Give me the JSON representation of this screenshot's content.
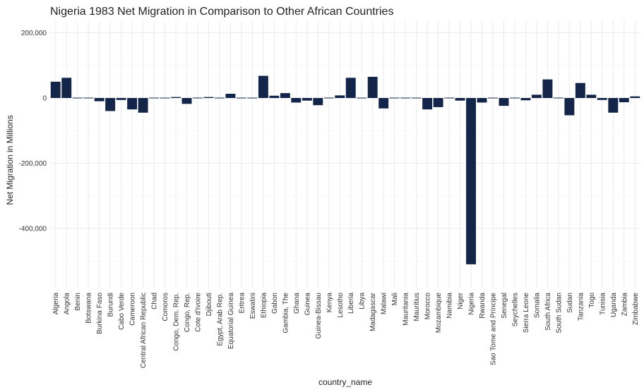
{
  "chart_data": {
    "type": "bar",
    "title": "Nigeria 1983 Net Migration in Comparison to Other African Countries",
    "xlabel": "country_name",
    "ylabel": "Net Migration in Millions",
    "ylim": [
      -590000,
      220000
    ],
    "yticks": [
      200000,
      0,
      -200000,
      -400000
    ],
    "ytick_labels": [
      "200,000",
      "0",
      "-200,000",
      "-400,000"
    ],
    "grid": true,
    "bar_color": "#14254a",
    "categories": [
      "Algeria",
      "Angola",
      "Benin",
      "Botswana",
      "Burkina Faso",
      "Burundi",
      "Cabo Verde",
      "Cameroon",
      "Central African Republic",
      "Chad",
      "Comoros",
      "Congo, Dem. Rep.",
      "Congo, Rep.",
      "Cote d'Ivoire",
      "Djibouti",
      "Egypt, Arab Rep.",
      "Equatorial Guinea",
      "Eritrea",
      "Eswatini",
      "Ethiopia",
      "Gabon",
      "Gambia, The",
      "Ghana",
      "Guinea",
      "Guinea-Bissau",
      "Kenya",
      "Lesotho",
      "Liberia",
      "Libya",
      "Madagascar",
      "Malawi",
      "Mali",
      "Mauritania",
      "Mauritius",
      "Morocco",
      "Mozambique",
      "Namibia",
      "Niger",
      "Nigeria",
      "Rwanda",
      "Sao Tome and Principe",
      "Senegal",
      "Seychelles",
      "Sierra Leone",
      "Somalia",
      "South Africa",
      "South Sudan",
      "Sudan",
      "Tanzania",
      "Togo",
      "Tunisia",
      "Uganda",
      "Zambia",
      "Zimbabwe"
    ],
    "values": [
      50000,
      62000,
      -2000,
      2000,
      -10000,
      -40000,
      -6000,
      -35000,
      -45000,
      -1000,
      2000,
      3000,
      -18000,
      -2000,
      3000,
      -2000,
      13000,
      2000,
      -2000,
      68000,
      7000,
      15000,
      -14000,
      -8000,
      -22000,
      0,
      8000,
      62000,
      -2000,
      65000,
      -32000,
      -2000,
      -2000,
      -1000,
      -35000,
      -28000,
      0,
      -8000,
      -510000,
      -14000,
      -2000,
      -24000,
      0,
      -7000,
      10000,
      57000,
      0,
      -53000,
      46000,
      10000,
      -6000,
      -45000,
      -13000,
      5000
    ]
  }
}
